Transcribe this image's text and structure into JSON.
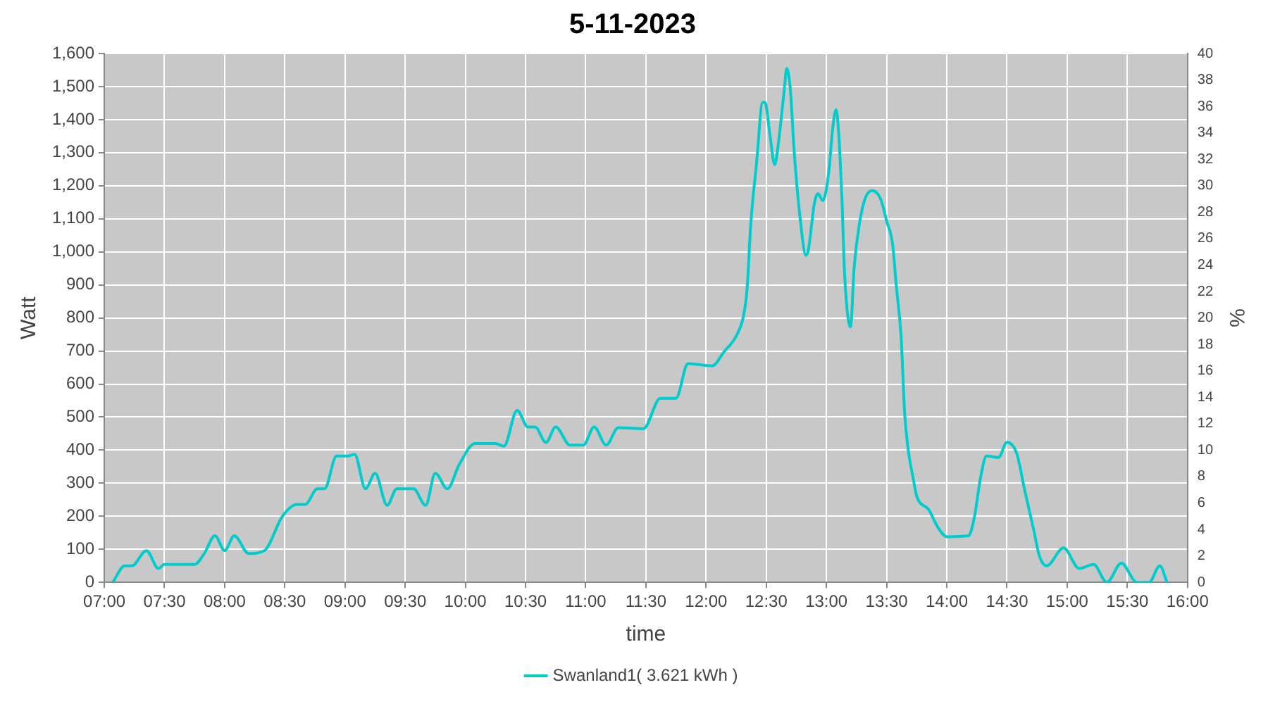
{
  "chart_data": {
    "type": "line",
    "title": "5-11-2023",
    "xlabel": "time",
    "ylabel": "Watt",
    "y2label": "%",
    "x": [
      7.07,
      7.17,
      7.23,
      7.35,
      7.45,
      7.5,
      7.75,
      7.83,
      7.92,
      8.0,
      8.08,
      8.2,
      8.33,
      8.48,
      8.6,
      8.67,
      8.77,
      8.83,
      8.93,
      9.02,
      9.08,
      9.17,
      9.25,
      9.35,
      9.43,
      9.57,
      9.67,
      9.75,
      9.85,
      9.95,
      10.08,
      10.25,
      10.32,
      10.43,
      10.52,
      10.58,
      10.67,
      10.75,
      10.87,
      10.98,
      11.07,
      11.17,
      11.27,
      11.48,
      11.62,
      11.75,
      11.85,
      12.05,
      12.15,
      12.25,
      12.31,
      12.34,
      12.37,
      12.42,
      12.47,
      12.49,
      12.53,
      12.57,
      12.6,
      12.65,
      12.67,
      12.7,
      12.73,
      12.78,
      12.83,
      12.85,
      12.9,
      12.93,
      12.97,
      13.02,
      13.05,
      13.08,
      13.1,
      13.13,
      13.15,
      13.2,
      13.23,
      13.27,
      13.32,
      13.38,
      13.45,
      13.5,
      13.55,
      13.58,
      13.62,
      13.65,
      13.68,
      13.72,
      13.75,
      13.85,
      13.92,
      14.0,
      14.18,
      14.23,
      14.28,
      14.33,
      14.43,
      14.5,
      14.58,
      14.65,
      14.72,
      14.77,
      14.83,
      14.97,
      15.1,
      15.22,
      15.33,
      15.45,
      15.58,
      15.68,
      15.77,
      15.83
    ],
    "series": [
      {
        "name": "Swanland1( 3.621 kWh )",
        "color": "#00cccc",
        "values": [
          0,
          50,
          50,
          96,
          42,
          54,
          54,
          87,
          141,
          96,
          141,
          87,
          96,
          200,
          236,
          236,
          283,
          283,
          382,
          382,
          387,
          283,
          330,
          233,
          283,
          283,
          233,
          330,
          283,
          357,
          420,
          420,
          412,
          520,
          470,
          470,
          423,
          470,
          415,
          415,
          470,
          415,
          468,
          465,
          557,
          557,
          662,
          655,
          698,
          745,
          805,
          885,
          1077,
          1272,
          1452,
          1452,
          1355,
          1264,
          1326,
          1492,
          1555,
          1492,
          1313,
          1106,
          989,
          1006,
          1147,
          1176,
          1155,
          1243,
          1367,
          1430,
          1367,
          1147,
          939,
          773,
          952,
          1076,
          1160,
          1185,
          1160,
          1093,
          1022,
          898,
          744,
          511,
          399,
          316,
          261,
          220,
          170,
          138,
          141,
          199,
          316,
          382,
          378,
          424,
          391,
          274,
          162,
          79,
          50,
          104,
          42,
          54,
          0,
          58,
          0,
          0,
          50,
          0
        ]
      }
    ],
    "xlim": [
      7,
      16
    ],
    "xticks": [
      {
        "value": 7,
        "label": "07:00"
      },
      {
        "value": 7.5,
        "label": "07:30"
      },
      {
        "value": 8,
        "label": "08:00"
      },
      {
        "value": 8.5,
        "label": "08:30"
      },
      {
        "value": 9,
        "label": "09:00"
      },
      {
        "value": 9.5,
        "label": "09:30"
      },
      {
        "value": 10,
        "label": "10:00"
      },
      {
        "value": 10.5,
        "label": "10:30"
      },
      {
        "value": 11,
        "label": "11:00"
      },
      {
        "value": 11.5,
        "label": "11:30"
      },
      {
        "value": 12,
        "label": "12:00"
      },
      {
        "value": 12.5,
        "label": "12:30"
      },
      {
        "value": 13,
        "label": "13:00"
      },
      {
        "value": 13.5,
        "label": "13:30"
      },
      {
        "value": 14,
        "label": "14:00"
      },
      {
        "value": 14.5,
        "label": "14:30"
      },
      {
        "value": 15,
        "label": "15:00"
      },
      {
        "value": 15.5,
        "label": "15:30"
      },
      {
        "value": 16,
        "label": "16:00"
      }
    ],
    "ylim": [
      0,
      1600
    ],
    "yticks": [
      0,
      100,
      200,
      300,
      400,
      500,
      600,
      700,
      800,
      900,
      {
        "value": 1000,
        "label": "1,000"
      },
      {
        "value": 1100,
        "label": "1,100"
      },
      {
        "value": 1200,
        "label": "1,200"
      },
      {
        "value": 1300,
        "label": "1,300"
      },
      {
        "value": 1400,
        "label": "1,400"
      },
      {
        "value": 1500,
        "label": "1,500"
      },
      {
        "value": 1600,
        "label": "1,600"
      }
    ],
    "y2lim": [
      0,
      40
    ],
    "y2ticks": [
      0,
      2,
      4,
      6,
      8,
      10,
      12,
      14,
      16,
      18,
      20,
      22,
      24,
      26,
      28,
      30,
      32,
      34,
      36,
      38,
      40
    ],
    "grid": true,
    "legend": "bottom",
    "marker": "none",
    "line_style": "solid"
  }
}
